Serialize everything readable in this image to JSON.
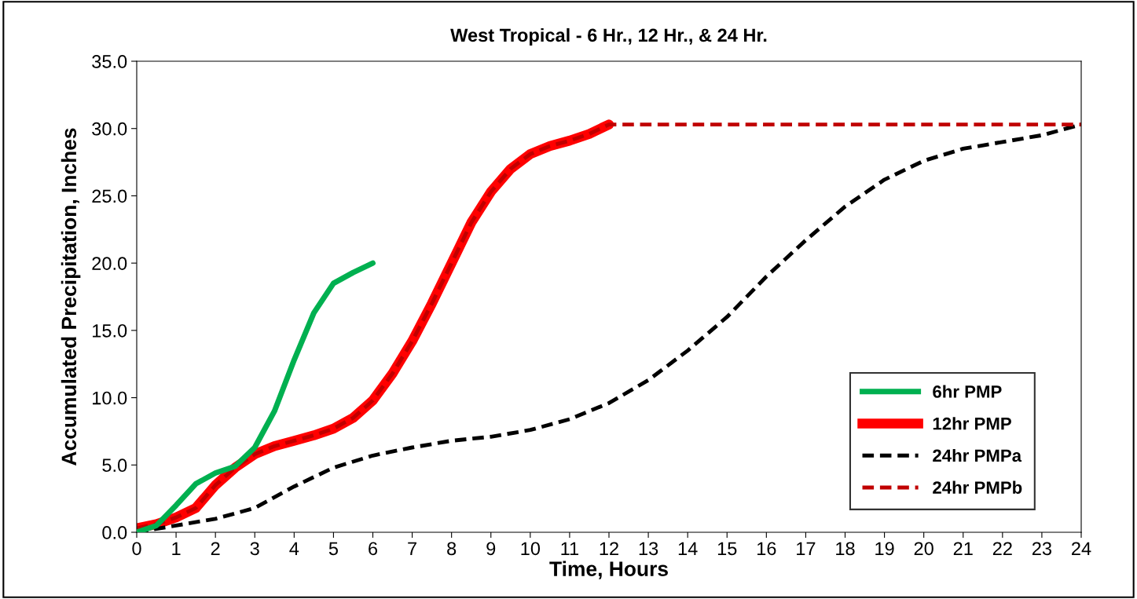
{
  "chart_data": {
    "type": "line",
    "title": "West Tropical - 6 Hr., 12 Hr., & 24 Hr.",
    "xlabel": "Time, Hours",
    "ylabel": "Accumulated Precipitation, Inches",
    "xlim": [
      0,
      24
    ],
    "xticks": [
      0,
      1,
      2,
      3,
      4,
      5,
      6,
      7,
      8,
      9,
      10,
      11,
      12,
      13,
      14,
      15,
      16,
      17,
      18,
      19,
      20,
      21,
      22,
      23,
      24
    ],
    "ylim": [
      0,
      35
    ],
    "yticks": [
      {
        "value": 0,
        "label": "0.0"
      },
      {
        "value": 5,
        "label": "5.0"
      },
      {
        "value": 10,
        "label": "10.0"
      },
      {
        "value": 15,
        "label": "15.0"
      },
      {
        "value": 20,
        "label": "20.0"
      },
      {
        "value": 25,
        "label": "25.0"
      },
      {
        "value": 30,
        "label": "30.0"
      },
      {
        "value": 35,
        "label": "35.0"
      }
    ],
    "grid": false,
    "legend": "bottom right",
    "marker": "none",
    "series": [
      {
        "name": "6hr PMP",
        "color": "#00b050",
        "line_style": "solid",
        "x": [
          0,
          0.5,
          1,
          1.5,
          2,
          2.5,
          3,
          3.5,
          4,
          4.5,
          5,
          5.5,
          6
        ],
        "values": [
          0.0,
          0.5,
          2.0,
          3.6,
          4.4,
          4.9,
          6.3,
          9.0,
          12.8,
          16.3,
          18.5,
          19.3,
          20.0
        ]
      },
      {
        "name": "12hr PMP",
        "color": "#ff0000",
        "line_style": "solid",
        "x": [
          0,
          0.5,
          1,
          1.5,
          2,
          2.5,
          3,
          3.5,
          4,
          4.5,
          5,
          5.5,
          6,
          6.5,
          7,
          7.5,
          8,
          8.5,
          9,
          9.5,
          10,
          10.5,
          11,
          11.5,
          12
        ],
        "values": [
          0.3,
          0.6,
          1.1,
          1.8,
          3.5,
          4.8,
          5.8,
          6.4,
          6.8,
          7.2,
          7.7,
          8.5,
          9.8,
          11.8,
          14.2,
          17.0,
          20.0,
          23.0,
          25.3,
          27.0,
          28.1,
          28.7,
          29.1,
          29.6,
          30.3
        ]
      },
      {
        "name": "24hr PMPa",
        "color": "#000000",
        "line_style": "dashed",
        "x": [
          0,
          1,
          2,
          3,
          4,
          5,
          6,
          7,
          8,
          9,
          10,
          11,
          12,
          13,
          14,
          15,
          16,
          17,
          18,
          19,
          20,
          21,
          22,
          23,
          24
        ],
        "values": [
          0.0,
          0.5,
          1.0,
          1.8,
          3.4,
          4.8,
          5.7,
          6.3,
          6.8,
          7.1,
          7.6,
          8.4,
          9.6,
          11.3,
          13.5,
          16.0,
          19.0,
          21.7,
          24.2,
          26.2,
          27.6,
          28.5,
          29.0,
          29.5,
          30.3
        ]
      },
      {
        "name": "24hr PMPb",
        "color": "#c00000",
        "line_style": "dashed",
        "x": [
          0,
          0.5,
          1,
          1.5,
          2,
          2.5,
          3,
          3.5,
          4,
          4.5,
          5,
          5.5,
          6,
          6.5,
          7,
          7.5,
          8,
          8.5,
          9,
          9.5,
          10,
          10.5,
          11,
          11.5,
          12,
          24
        ],
        "values": [
          0.3,
          0.6,
          1.1,
          1.8,
          3.5,
          4.8,
          5.8,
          6.4,
          6.8,
          7.2,
          7.7,
          8.5,
          9.8,
          11.8,
          14.2,
          17.0,
          20.0,
          23.0,
          25.3,
          27.0,
          28.1,
          28.7,
          29.1,
          29.6,
          30.3,
          30.3
        ]
      }
    ]
  }
}
